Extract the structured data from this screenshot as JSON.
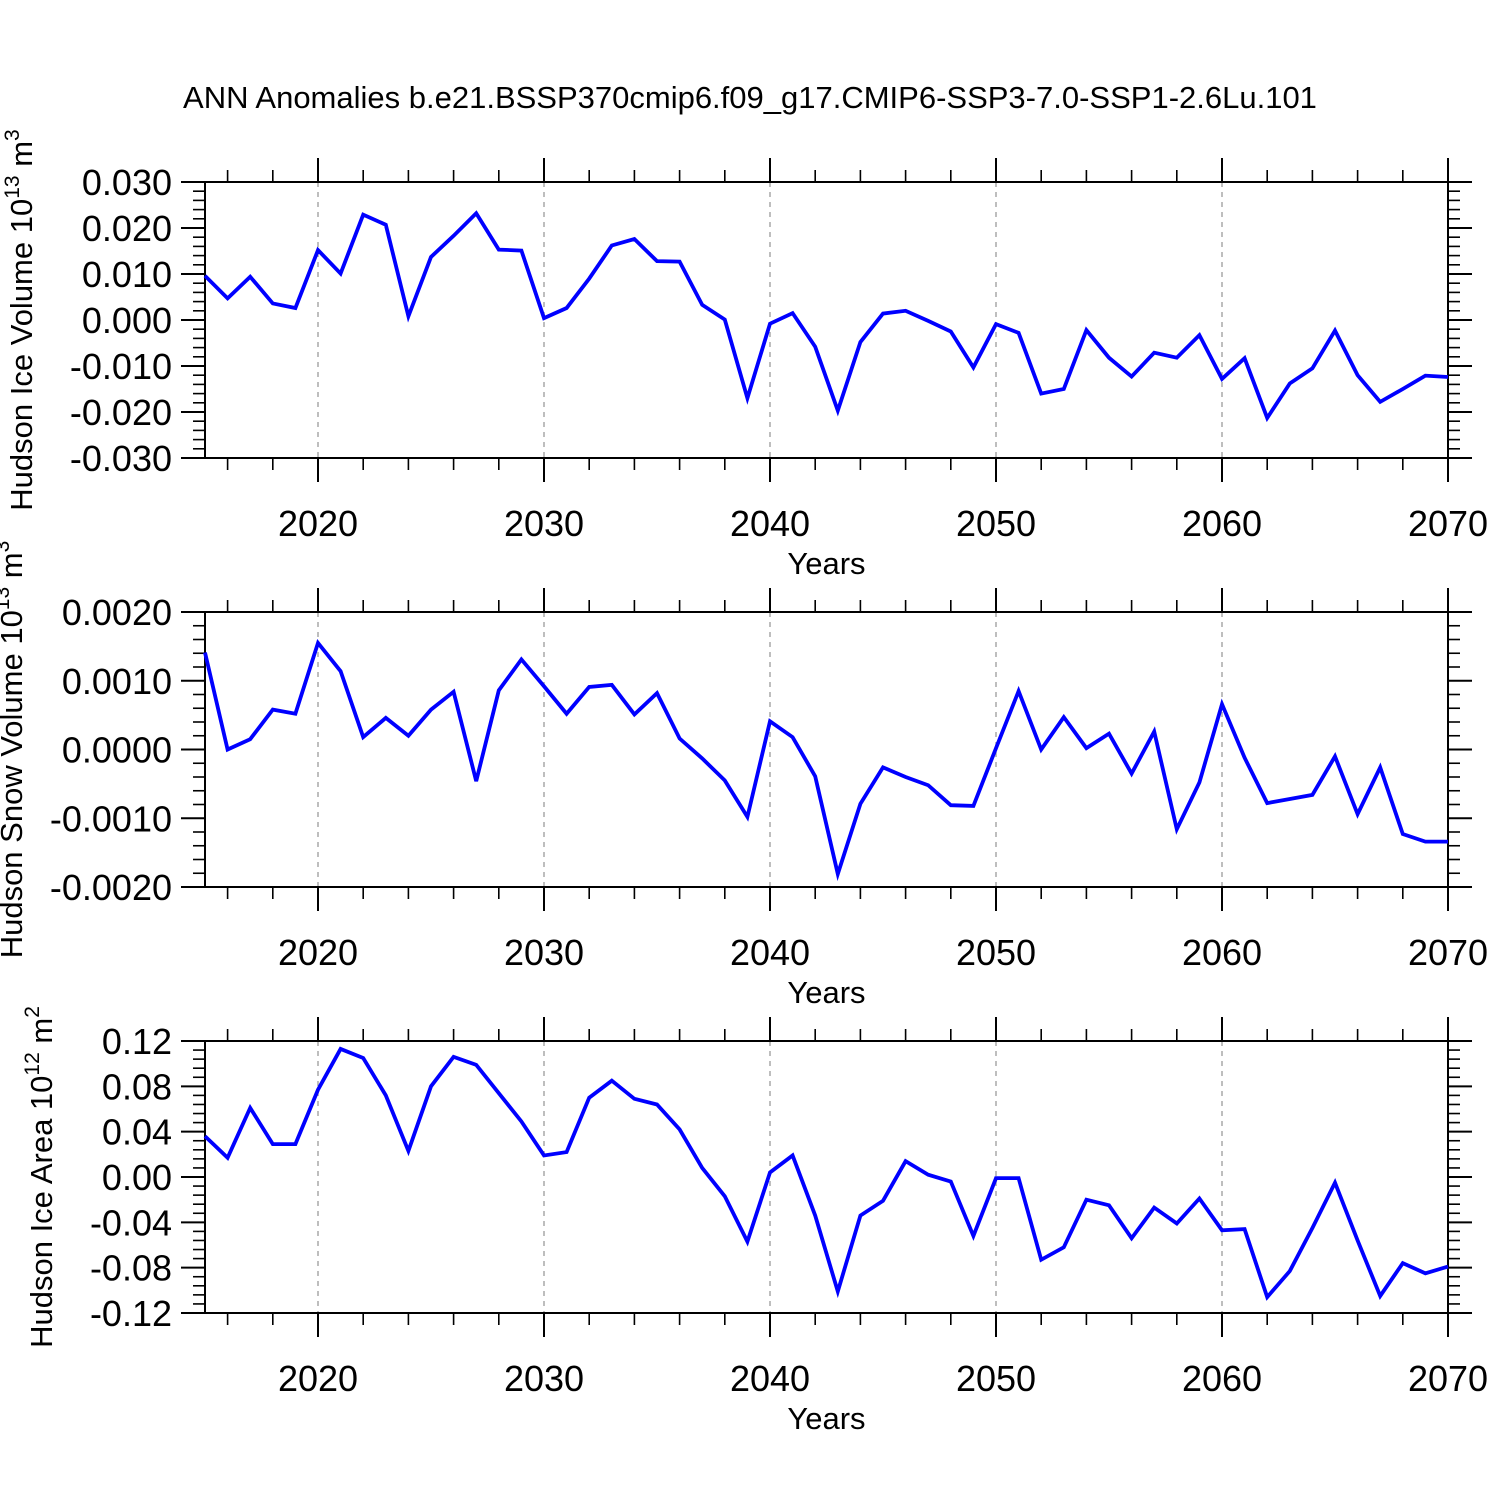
{
  "title": "ANN Anomalies b.e21.BSSP370cmip6.f09_g17.CMIP6-SSP3-7.0-SSP1-2.6Lu.101",
  "colors": {
    "line": "#0000ff",
    "grid": "#a3a3a3",
    "axis": "#000000",
    "text": "#000000",
    "background": "#ffffff"
  },
  "x_axis": {
    "label": "Years",
    "start_year": 2015,
    "end_year": 2070,
    "major_tick_years": [
      2020,
      2030,
      2040,
      2050,
      2060,
      2070
    ],
    "minor_tick_step": 2,
    "grid_years": [
      2020,
      2030,
      2040,
      2050,
      2060
    ],
    "major_tick_labels": [
      "2020",
      "2030",
      "2040",
      "2050",
      "2060",
      "2070"
    ],
    "years": [
      2015,
      2016,
      2017,
      2018,
      2019,
      2020,
      2021,
      2022,
      2023,
      2024,
      2025,
      2026,
      2027,
      2028,
      2029,
      2030,
      2031,
      2032,
      2033,
      2034,
      2035,
      2036,
      2037,
      2038,
      2039,
      2040,
      2041,
      2042,
      2043,
      2044,
      2045,
      2046,
      2047,
      2048,
      2049,
      2050,
      2051,
      2052,
      2053,
      2054,
      2055,
      2056,
      2057,
      2058,
      2059,
      2060,
      2061,
      2062,
      2063,
      2064,
      2065,
      2066,
      2067,
      2068,
      2069,
      2070
    ]
  },
  "chart_data": [
    {
      "type": "line",
      "id": "hudson-ice-volume",
      "ylabel": "Hudson Ice Volume 10^13 m^3",
      "ylabel_parts": [
        [
          "t",
          "Hudson Ice Volume 10"
        ],
        [
          "s",
          "13"
        ],
        [
          "t",
          " m"
        ],
        [
          "s",
          "3"
        ]
      ],
      "xlabel": "Years",
      "ylim": [
        -0.03,
        0.03
      ],
      "ytick_values": [
        0.03,
        0.02,
        0.01,
        0.0,
        -0.01,
        -0.02,
        -0.03
      ],
      "ytick_labels": [
        "0.030",
        "0.020",
        "0.010",
        "0.000",
        "-0.010",
        "-0.020",
        "-0.030"
      ],
      "y_minor_step": 0.002,
      "grid": "vertical-dashed",
      "legend": "none",
      "values": [
        0.0096,
        0.0047,
        0.0094,
        0.0036,
        0.0026,
        0.0152,
        0.0101,
        0.0229,
        0.0207,
        0.0008,
        0.0137,
        0.0183,
        0.0232,
        0.0153,
        0.0151,
        0.0004,
        0.0026,
        0.009,
        0.0162,
        0.0176,
        0.0128,
        0.0127,
        0.0033,
        0.0001,
        -0.017,
        -0.0008,
        0.0015,
        -0.0058,
        -0.0197,
        -0.0048,
        0.0014,
        0.002,
        -0.0002,
        -0.0025,
        -0.0103,
        -0.0009,
        -0.0028,
        -0.016,
        -0.015,
        -0.0022,
        -0.0082,
        -0.0123,
        -0.0071,
        -0.0082,
        -0.0033,
        -0.0128,
        -0.0083,
        -0.0213,
        -0.0138,
        -0.0105,
        -0.0023,
        -0.012,
        -0.0178,
        -0.015,
        -0.0121,
        -0.0124
      ]
    },
    {
      "type": "line",
      "id": "hudson-snow-volume",
      "ylabel": "Hudson Snow Volume 10^13 m^3",
      "ylabel_parts": [
        [
          "t",
          "Hudson Snow Volume 10"
        ],
        [
          "s",
          "13"
        ],
        [
          "t",
          " m"
        ],
        [
          "s",
          "3"
        ]
      ],
      "xlabel": "Years",
      "ylim": [
        -0.002,
        0.002
      ],
      "ytick_values": [
        0.002,
        0.001,
        0.0,
        -0.001,
        -0.002
      ],
      "ytick_labels": [
        "0.0020",
        "0.0010",
        "0.0000",
        "-0.0010",
        "-0.0020"
      ],
      "y_minor_step": 0.0002,
      "grid": "vertical-dashed",
      "legend": "none",
      "values": [
        0.00141,
        0.0,
        0.00015,
        0.00058,
        0.00052,
        0.00155,
        0.00114,
        0.00018,
        0.00046,
        0.0002,
        0.00058,
        0.00084,
        -0.00046,
        0.00086,
        0.00131,
        0.00092,
        0.00052,
        0.00091,
        0.00094,
        0.00051,
        0.00082,
        0.00016,
        -0.00013,
        -0.00045,
        -0.00098,
        0.00041,
        0.00018,
        -0.00039,
        -0.00181,
        -0.00079,
        -0.00026,
        -0.0004,
        -0.00052,
        -0.00081,
        -0.00082,
        2e-05,
        0.00085,
        0.0,
        0.00047,
        2e-05,
        0.00023,
        -0.00035,
        0.00026,
        -0.00116,
        -0.00048,
        0.00066,
        -0.00012,
        -0.00078,
        -0.00072,
        -0.00066,
        -0.0001,
        -0.00094,
        -0.00026,
        -0.00123,
        -0.00134,
        -0.00134
      ]
    },
    {
      "type": "line",
      "id": "hudson-ice-area",
      "ylabel": "Hudson Ice Area 10^12 m^2",
      "ylabel_parts": [
        [
          "t",
          "Hudson Ice Area 10"
        ],
        [
          "s",
          "12"
        ],
        [
          "t",
          " m"
        ],
        [
          "s",
          "2"
        ]
      ],
      "xlabel": "Years",
      "ylim": [
        -0.12,
        0.12
      ],
      "ytick_values": [
        0.12,
        0.08,
        0.04,
        0.0,
        -0.04,
        -0.08,
        -0.12
      ],
      "ytick_labels": [
        "0.12",
        "0.08",
        "0.04",
        "0.00",
        "-0.04",
        "-0.08",
        "-0.12"
      ],
      "y_minor_step": 0.008,
      "grid": "vertical-dashed",
      "legend": "none",
      "values": [
        0.036,
        0.017,
        0.061,
        0.029,
        0.029,
        0.077,
        0.113,
        0.105,
        0.072,
        0.023,
        0.08,
        0.106,
        0.099,
        0.074,
        0.049,
        0.019,
        0.022,
        0.07,
        0.085,
        0.069,
        0.064,
        0.042,
        0.008,
        -0.017,
        -0.057,
        0.004,
        0.019,
        -0.034,
        -0.101,
        -0.034,
        -0.021,
        0.014,
        0.002,
        -0.004,
        -0.052,
        -0.001,
        -0.001,
        -0.073,
        -0.062,
        -0.02,
        -0.025,
        -0.054,
        -0.027,
        -0.041,
        -0.019,
        -0.047,
        -0.046,
        -0.106,
        -0.083,
        -0.045,
        -0.005,
        -0.056,
        -0.105,
        -0.076,
        -0.085,
        -0.079
      ]
    }
  ]
}
